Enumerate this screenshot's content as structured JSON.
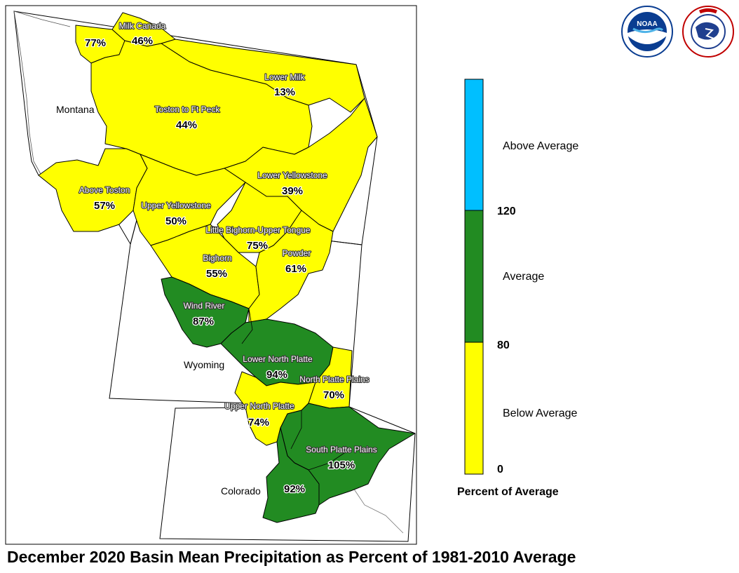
{
  "title": "December 2020 Basin Mean Precipitation as Percent of 1981-2010 Average",
  "logos": {
    "noaa": "NOAA",
    "nws": "NATIONAL WEATHER SERVICE"
  },
  "colors": {
    "below": "#ffff00",
    "average": "#228b22",
    "above": "#00bfff",
    "outline": "#000000"
  },
  "states": [
    {
      "id": "montana",
      "name": "Montana"
    },
    {
      "id": "wyoming",
      "name": "Wyoming"
    },
    {
      "id": "colorado",
      "name": "Colorado"
    }
  ],
  "basins": [
    {
      "id": "milk-canada-west",
      "name": "",
      "pct": "77%",
      "pct_value": 77,
      "category": "below"
    },
    {
      "id": "milk-canada",
      "name": "Milk Canada",
      "pct": "46%",
      "pct_value": 46,
      "category": "below"
    },
    {
      "id": "lower-milk",
      "name": "Lower Milk",
      "pct": "13%",
      "pct_value": 13,
      "category": "below"
    },
    {
      "id": "toston-ft-peck",
      "name": "Toston to Ft Peck",
      "pct": "44%",
      "pct_value": 44,
      "category": "below"
    },
    {
      "id": "above-toston",
      "name": "Above Toston",
      "pct": "57%",
      "pct_value": 57,
      "category": "below"
    },
    {
      "id": "lower-yellowstone",
      "name": "Lower Yellowstone",
      "pct": "39%",
      "pct_value": 39,
      "category": "below"
    },
    {
      "id": "upper-yellowstone",
      "name": "Upper Yellowstone",
      "pct": "50%",
      "pct_value": 50,
      "category": "below"
    },
    {
      "id": "little-bighorn",
      "name": "Little Bighorn-Upper Tongue",
      "pct": "75%",
      "pct_value": 75,
      "category": "below"
    },
    {
      "id": "bighorn",
      "name": "Bighorn",
      "pct": "55%",
      "pct_value": 55,
      "category": "below"
    },
    {
      "id": "powder",
      "name": "Powder",
      "pct": "61%",
      "pct_value": 61,
      "category": "below"
    },
    {
      "id": "wind-river",
      "name": "Wind River",
      "pct": "87%",
      "pct_value": 87,
      "category": "average"
    },
    {
      "id": "lower-north-platte",
      "name": "Lower North Platte",
      "pct": "94%",
      "pct_value": 94,
      "category": "average"
    },
    {
      "id": "north-platte-plains",
      "name": "North Platte Plains",
      "pct": "70%",
      "pct_value": 70,
      "category": "below"
    },
    {
      "id": "upper-north-platte",
      "name": "Upper North Platte",
      "pct": "74%",
      "pct_value": 74,
      "category": "below"
    },
    {
      "id": "south-platte-plains",
      "name": "South Platte Plains",
      "pct": "105%",
      "pct_value": 105,
      "category": "average"
    },
    {
      "id": "south-platte-mountains",
      "name": "",
      "pct": "92%",
      "pct_value": 92,
      "category": "average"
    }
  ],
  "legend": {
    "title": "Percent of Average",
    "categories": [
      {
        "id": "above",
        "label": "Above Average",
        "color": "#00bfff"
      },
      {
        "id": "average",
        "label": "Average",
        "color": "#228b22"
      },
      {
        "id": "below",
        "label": "Below Average",
        "color": "#ffff00"
      }
    ],
    "breaks": [
      {
        "id": "b120",
        "label": "120"
      },
      {
        "id": "b80",
        "label": "80"
      },
      {
        "id": "b0",
        "label": "0"
      }
    ]
  }
}
